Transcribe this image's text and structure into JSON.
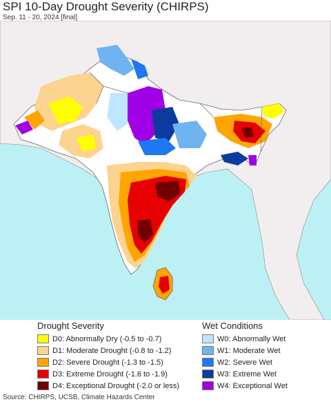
{
  "title": "SPI 10-Day Drought Severity (CHIRPS)",
  "subtitle": "Sep. 11 - 20, 2024 [final]",
  "colors": {
    "ocean": "#bdf0f4",
    "land_other": "#f2eef0",
    "normal": "#ffffff",
    "border": "#666666"
  },
  "legend": {
    "drought_heading": "Drought Severity",
    "drought_items": [
      {
        "label": "D0: Abnormally Dry (-0.5 to -0.7)",
        "color": "#ffff00"
      },
      {
        "label": "D1: Moderate Drought (-0.8 to -1.2)",
        "color": "#fcd38f"
      },
      {
        "label": "D2: Severe Drought (-1.3 to -1.5)",
        "color": "#ffa500"
      },
      {
        "label": "D3: Extreme Drought (-1.6 to -1.9)",
        "color": "#e60000"
      },
      {
        "label": "D4: Exceptional Drought (-2.0 or less)",
        "color": "#730000"
      }
    ],
    "wet_heading": "Wet Conditions",
    "wet_items": [
      {
        "label": "W0: Abnormally Wet",
        "color": "#bfe6ff"
      },
      {
        "label": "W1: Moderate Wet",
        "color": "#6fb4f0"
      },
      {
        "label": "W2: Severe Wet",
        "color": "#1f78f0"
      },
      {
        "label": "W3: Extreme Wet",
        "color": "#0a3ca0"
      },
      {
        "label": "W4: Exceptional Wet",
        "color": "#a000e6"
      }
    ]
  },
  "source": "Source: CHIRPS, UCSB, Climate Hazards Center"
}
